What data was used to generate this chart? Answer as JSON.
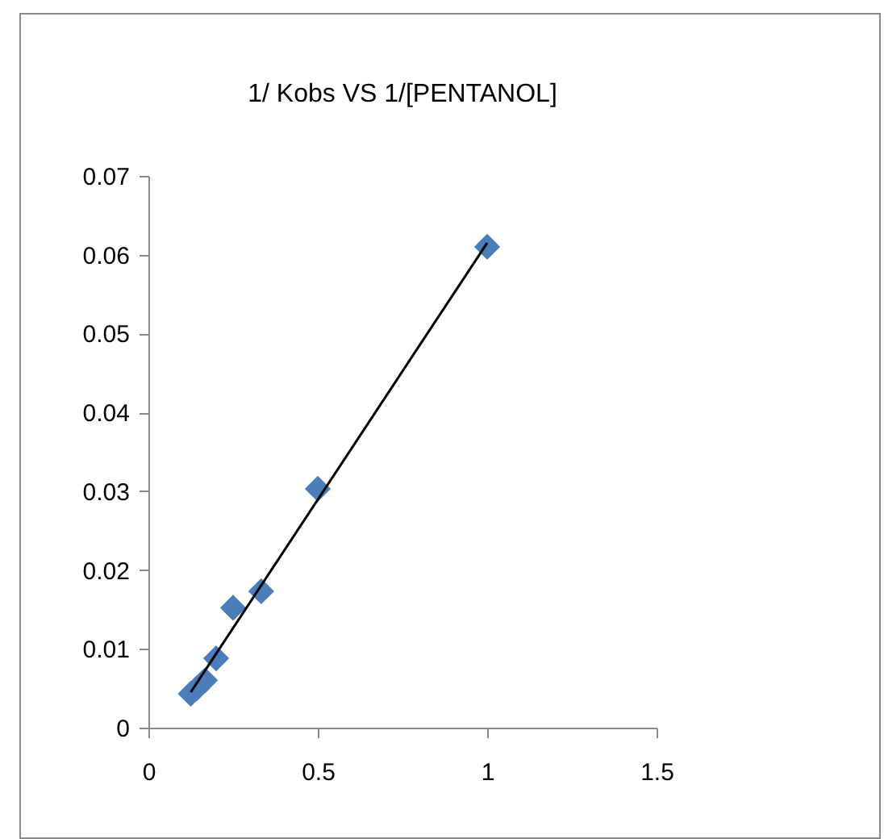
{
  "chart_data": {
    "type": "scatter",
    "title": "1/ Kobs VS 1/[PENTANOL]",
    "x": [
      0.125,
      0.143,
      0.167,
      0.2,
      0.25,
      0.333,
      0.5,
      1
    ],
    "series": [
      {
        "color": "#4a7ebb",
        "marker": "diamond",
        "values": [
          0.0043,
          0.005,
          0.006,
          0.0088,
          0.0152,
          0.0173,
          0.0303,
          0.061
        ]
      },
      {
        "type": "line",
        "color": "#000000",
        "x": [
          0.125,
          1
        ],
        "values": [
          0.0045,
          0.0615
        ]
      }
    ],
    "xlim": [
      0,
      1.5
    ],
    "xticks": [
      0,
      0.5,
      1,
      1.5
    ],
    "ylim": [
      0,
      0.07
    ],
    "yticks": [
      0,
      0.01,
      0.02,
      0.03,
      0.04,
      0.05,
      0.06,
      0.07
    ],
    "grid": false
  }
}
